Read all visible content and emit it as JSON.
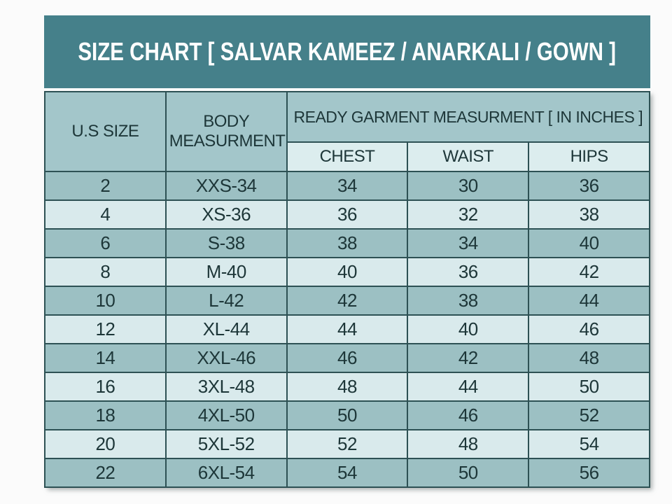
{
  "title": "SIZE CHART [ SALVAR KAMEEZ / ANARKALI / GOWN ]",
  "header": {
    "us_size": "U.S SIZE",
    "body_measurement": "BODY MEASURMENT",
    "ready_garment": "READY GARMENT MEASURMENT [ IN INCHES ]",
    "chest": "CHEST",
    "waist": "WAIST",
    "hips": "HIPS"
  },
  "colors": {
    "title_bar_bg": "#45808a",
    "title_text": "#ffffff",
    "header_cell_bg": "#a3c6ca",
    "subheader_cell_bg": "#dcedee",
    "row_dark_bg": "#9cc0c3",
    "row_light_bg": "#d9eaec",
    "border": "#2d5154",
    "text": "#1d3638",
    "page_bg": "#fbfbfb"
  },
  "chart_data": {
    "type": "table",
    "title": "SIZE CHART [ SALVAR KAMEEZ / ANARKALI / GOWN ]",
    "column_group": {
      "label": "READY GARMENT MEASURMENT [ IN INCHES ]",
      "spans": [
        "CHEST",
        "WAIST",
        "HIPS"
      ]
    },
    "columns": [
      "U.S SIZE",
      "BODY MEASURMENT",
      "CHEST",
      "WAIST",
      "HIPS"
    ],
    "rows": [
      [
        "2",
        "XXS-34",
        "34",
        "30",
        "36"
      ],
      [
        "4",
        "XS-36",
        "36",
        "32",
        "38"
      ],
      [
        "6",
        "S-38",
        "38",
        "34",
        "40"
      ],
      [
        "8",
        "M-40",
        "40",
        "36",
        "42"
      ],
      [
        "10",
        "L-42",
        "42",
        "38",
        "44"
      ],
      [
        "12",
        "XL-44",
        "44",
        "40",
        "46"
      ],
      [
        "14",
        "XXL-46",
        "46",
        "42",
        "48"
      ],
      [
        "16",
        "3XL-48",
        "48",
        "44",
        "50"
      ],
      [
        "18",
        "4XL-50",
        "50",
        "46",
        "52"
      ],
      [
        "20",
        "5XL-52",
        "52",
        "48",
        "54"
      ],
      [
        "22",
        "6XL-54",
        "54",
        "50",
        "56"
      ]
    ]
  }
}
